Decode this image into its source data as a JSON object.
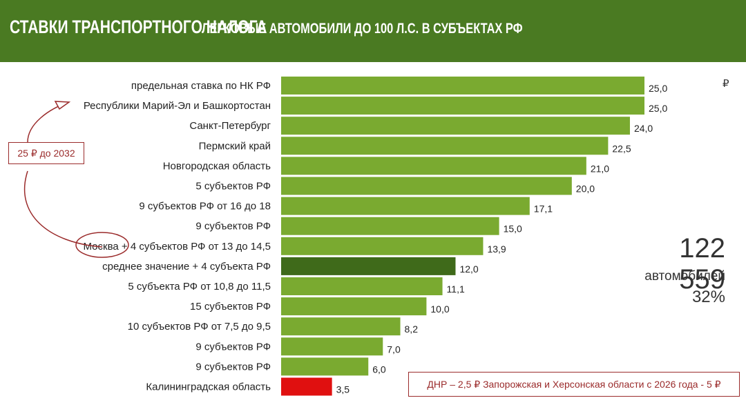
{
  "header": {
    "title_main": "СТАВКИ ТРАНСПОРТНОГО НАЛОГА",
    "title_sub": "ЛЕГКОВЫЕ АВТОМОБИЛИ ДО 100 Л.С. В СУБЪЕКТАХ РФ"
  },
  "colors": {
    "header_bg": "#4a7a22",
    "bar": "#7aaa30",
    "bar_highlight": "#3f6a1a",
    "bar_min": "#e01010",
    "annotation": "#9a2a2a"
  },
  "chart_data": {
    "type": "bar",
    "orientation": "horizontal",
    "title": "СТАВКИ ТРАНСПОРТНОГО НАЛОГА ЛЕГКОВЫЕ АВТОМОБИЛИ ДО 100 Л.С. В СУБЪЕКТАХ РФ",
    "unit": "₽",
    "categories": [
      "предельная ставка по НК РФ",
      "Республики Марий-Эл и Башкортостан",
      "Санкт-Петербург",
      "Пермский край",
      "Новгородская область",
      "5 субъектов РФ",
      "9 субъектов РФ от 16 до 18",
      "9 субъектов РФ",
      "Москва + 4 субъектов РФ от 13 до 14,5",
      "среднее значение + 4 субъекта РФ",
      "5 субъекта РФ от 10,8 до 11,5",
      "15 субъектов РФ",
      "10 субъектов РФ от 7,5 до 9,5",
      "9 субъектов РФ",
      "9 субъектов РФ",
      "Калининградская область"
    ],
    "values": [
      25.0,
      25.0,
      24.0,
      22.5,
      21.0,
      20.0,
      17.1,
      15.0,
      13.9,
      12.0,
      11.1,
      10.0,
      8.2,
      7.0,
      6.0,
      3.5
    ],
    "value_labels": [
      "25,0",
      "25,0",
      "24,0",
      "22,5",
      "21,0",
      "20,0",
      "17,1",
      "15,0",
      "13,9",
      "12,0",
      "11,1",
      "10,0",
      "8,2",
      "7,0",
      "6,0",
      "3,5"
    ],
    "highlight_index": 9,
    "min_index": 15,
    "xlim": [
      0,
      25
    ]
  },
  "stats": {
    "count": "122 559",
    "label": "автомобилей",
    "percent": "32%"
  },
  "annotations": {
    "callout": "25 ₽ до 2032",
    "note": "ДНР – 2,5 ₽  Запорожская и Херсонская области с 2026 года - 5 ₽"
  }
}
